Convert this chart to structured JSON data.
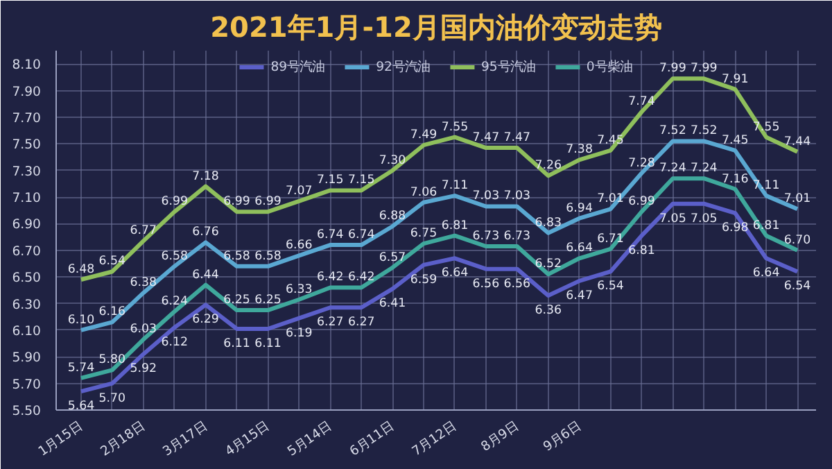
{
  "chart_data": {
    "type": "line",
    "title": "2021年1月-12月国内油价变动走势",
    "categories": [
      "1月15日",
      null,
      "2月18日",
      null,
      "3月17日",
      null,
      "4月15日",
      null,
      "5月14日",
      null,
      "6月11日",
      null,
      "7月12日",
      null,
      "8月9日",
      null,
      "9月6日",
      null,
      null,
      null,
      null,
      null,
      null,
      null
    ],
    "series": [
      {
        "name": "89号汽油",
        "color": "#5b5fc9",
        "values": [
          5.64,
          5.7,
          5.92,
          6.12,
          6.29,
          6.11,
          6.11,
          6.19,
          6.27,
          6.27,
          6.41,
          6.59,
          6.64,
          6.56,
          6.56,
          6.36,
          6.47,
          6.54,
          6.81,
          7.05,
          7.05,
          6.98,
          6.64,
          6.54
        ],
        "value_labels": [
          "5.64",
          "5.70",
          "5.92",
          "6.12",
          "6.29",
          "6.11",
          "6.11",
          "6.19",
          "6.27",
          "6.27",
          "6.41",
          "6.59",
          "6.64",
          "6.56",
          "6.56",
          "6.36",
          "6.47",
          "6.54",
          "6.81",
          "7.05",
          "7.05",
          "6.98",
          "6.64",
          "6.54"
        ]
      },
      {
        "name": "92号汽油",
        "color": "#5aa8d2",
        "values": [
          6.1,
          6.16,
          6.38,
          6.58,
          6.76,
          6.58,
          6.58,
          6.66,
          6.74,
          6.74,
          6.88,
          7.06,
          7.11,
          7.03,
          7.03,
          6.83,
          6.94,
          7.01,
          7.28,
          7.52,
          7.52,
          7.45,
          7.11,
          7.01
        ],
        "value_labels": [
          "6.10",
          "6.16",
          "6.38",
          "6.58",
          "6.76",
          "6.58",
          "6.58",
          "6.66",
          "6.74",
          "6.74",
          "6.88",
          "7.06",
          "7.11",
          "7.03",
          "7.03",
          "6.83",
          "6.94",
          "7.01",
          "7.28",
          "7.52",
          "7.52",
          "7.45",
          "7.11",
          "7.01"
        ]
      },
      {
        "name": "95号汽油",
        "color": "#8fbf5c",
        "values": [
          6.48,
          6.54,
          6.77,
          6.99,
          7.18,
          6.99,
          6.99,
          7.07,
          7.15,
          7.15,
          7.3,
          7.49,
          7.55,
          7.47,
          7.47,
          7.26,
          7.38,
          7.45,
          7.74,
          7.99,
          7.99,
          7.91,
          7.55,
          7.44
        ],
        "value_labels": [
          "6.48",
          "6.54",
          "6.77",
          "6.99",
          "7.18",
          "6.99",
          "6.99",
          "7.07",
          "7.15",
          "7.15",
          "7.30",
          "7.49",
          "7.55",
          "7.47",
          "7.47",
          "7.26",
          "7.38",
          "7.45",
          "7.74",
          "7.99",
          "7.99",
          "7.91",
          "7.55",
          "7.44"
        ]
      },
      {
        "name": "0号柴油",
        "color": "#3fa89c",
        "values": [
          5.74,
          5.8,
          6.03,
          6.24,
          6.44,
          6.25,
          6.25,
          6.33,
          6.42,
          6.42,
          6.57,
          6.75,
          6.81,
          6.73,
          6.73,
          6.52,
          6.64,
          6.71,
          6.99,
          7.24,
          7.24,
          7.16,
          6.81,
          6.7
        ],
        "value_labels": [
          "5.74",
          "5.80",
          "6.03",
          "6.24",
          "6.44",
          "6.25",
          "6.25",
          "6.33",
          "6.42",
          "6.42",
          "6.57",
          "6.75",
          "6.81",
          "6.73",
          "6.73",
          "6.52",
          "6.64",
          "6.71",
          "6.99",
          "7.24",
          "7.24",
          "7.16",
          "6.81",
          "6.70"
        ]
      }
    ],
    "ylim": [
      5.5,
      8.2
    ],
    "yticks": [
      {
        "value": 5.5,
        "label": "5.50"
      },
      {
        "value": 5.7,
        "label": "5.70"
      },
      {
        "value": 5.9,
        "label": "5.90"
      },
      {
        "value": 6.1,
        "label": "6.10"
      },
      {
        "value": 6.3,
        "label": "6.30"
      },
      {
        "value": 6.5,
        "label": "6.50"
      },
      {
        "value": 6.7,
        "label": "6.70"
      },
      {
        "value": 6.9,
        "label": "6.90"
      },
      {
        "value": 7.1,
        "label": "7.10"
      },
      {
        "value": 7.3,
        "label": "7.30"
      },
      {
        "value": 7.5,
        "label": "7.50"
      },
      {
        "value": 7.7,
        "label": "7.70"
      },
      {
        "value": 7.9,
        "label": "7.90"
      },
      {
        "value": 8.1,
        "label": "8.10"
      }
    ],
    "grid": true,
    "legend": "top",
    "marker": "none"
  }
}
